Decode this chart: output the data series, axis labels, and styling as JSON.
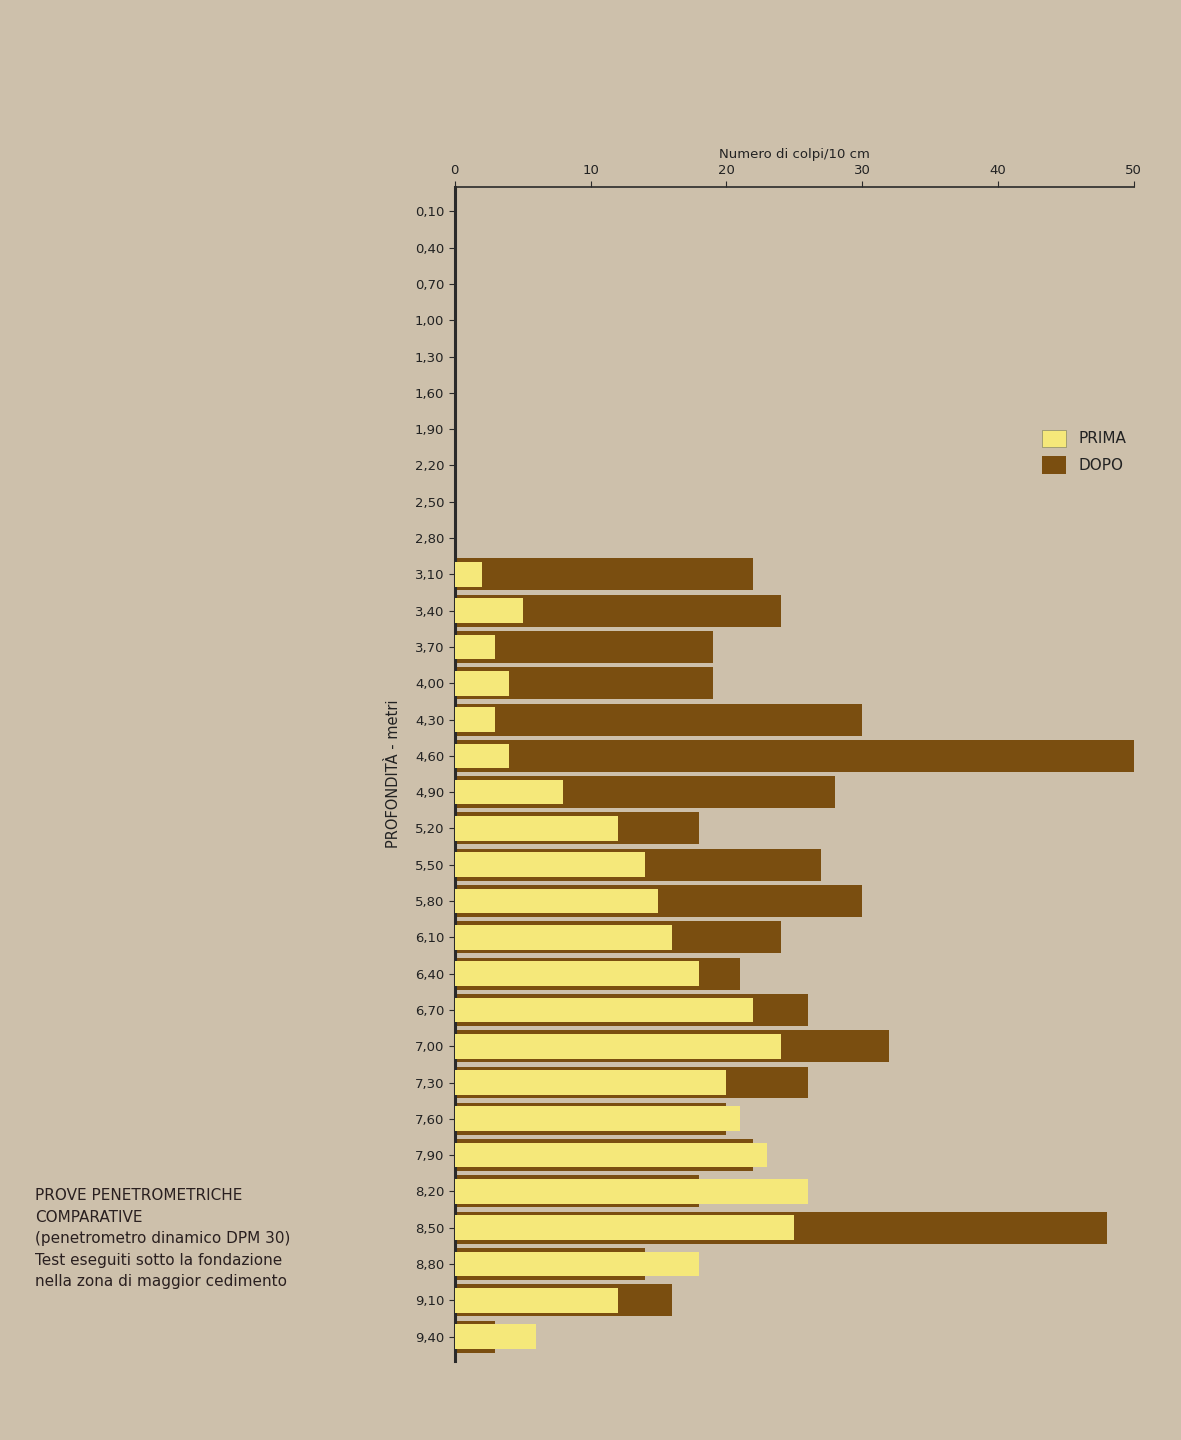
{
  "background_color": "#cdc0ab",
  "prima_color": "#f5e87a",
  "dopo_color": "#7a4e10",
  "ylabel": "PROFONDITÀ - metri",
  "xlabel": "Numero di colpi/10 cm",
  "xlim_max": 50,
  "legend_prima": "PRIMA",
  "legend_dopo": "DOPO",
  "depths": [
    0.1,
    0.4,
    0.7,
    1.0,
    1.3,
    1.6,
    1.9,
    2.2,
    2.5,
    2.8,
    3.1,
    3.4,
    3.7,
    4.0,
    4.3,
    4.6,
    4.9,
    5.2,
    5.5,
    5.8,
    6.1,
    6.4,
    6.7,
    7.0,
    7.3,
    7.6,
    7.9,
    8.2,
    8.5,
    8.8,
    9.1,
    9.4
  ],
  "prima_values": [
    0,
    0,
    0,
    0,
    0,
    0,
    0,
    0,
    0,
    0,
    2,
    5,
    3,
    4,
    3,
    4,
    8,
    12,
    14,
    15,
    16,
    18,
    22,
    24,
    20,
    21,
    23,
    26,
    25,
    18,
    12,
    6
  ],
  "dopo_values": [
    0,
    0,
    0,
    0,
    0,
    0,
    0,
    0,
    0,
    0,
    22,
    24,
    19,
    19,
    30,
    50,
    28,
    18,
    27,
    30,
    24,
    21,
    26,
    32,
    26,
    20,
    22,
    18,
    48,
    14,
    16,
    3
  ],
  "title_text_line1": "PROVE PENETROMETRICHE",
  "title_text_line2": "COMPARATIVE",
  "title_text_line3": "(penetrometro dinamico DPM 30)",
  "title_text_line4": "Test eseguiti sotto la fondazione",
  "title_text_line5": "nella zona di maggior cedimento",
  "tick_font_size": 9.5,
  "label_font_size": 10.5,
  "legend_font_size": 11,
  "title_font_size": 11
}
